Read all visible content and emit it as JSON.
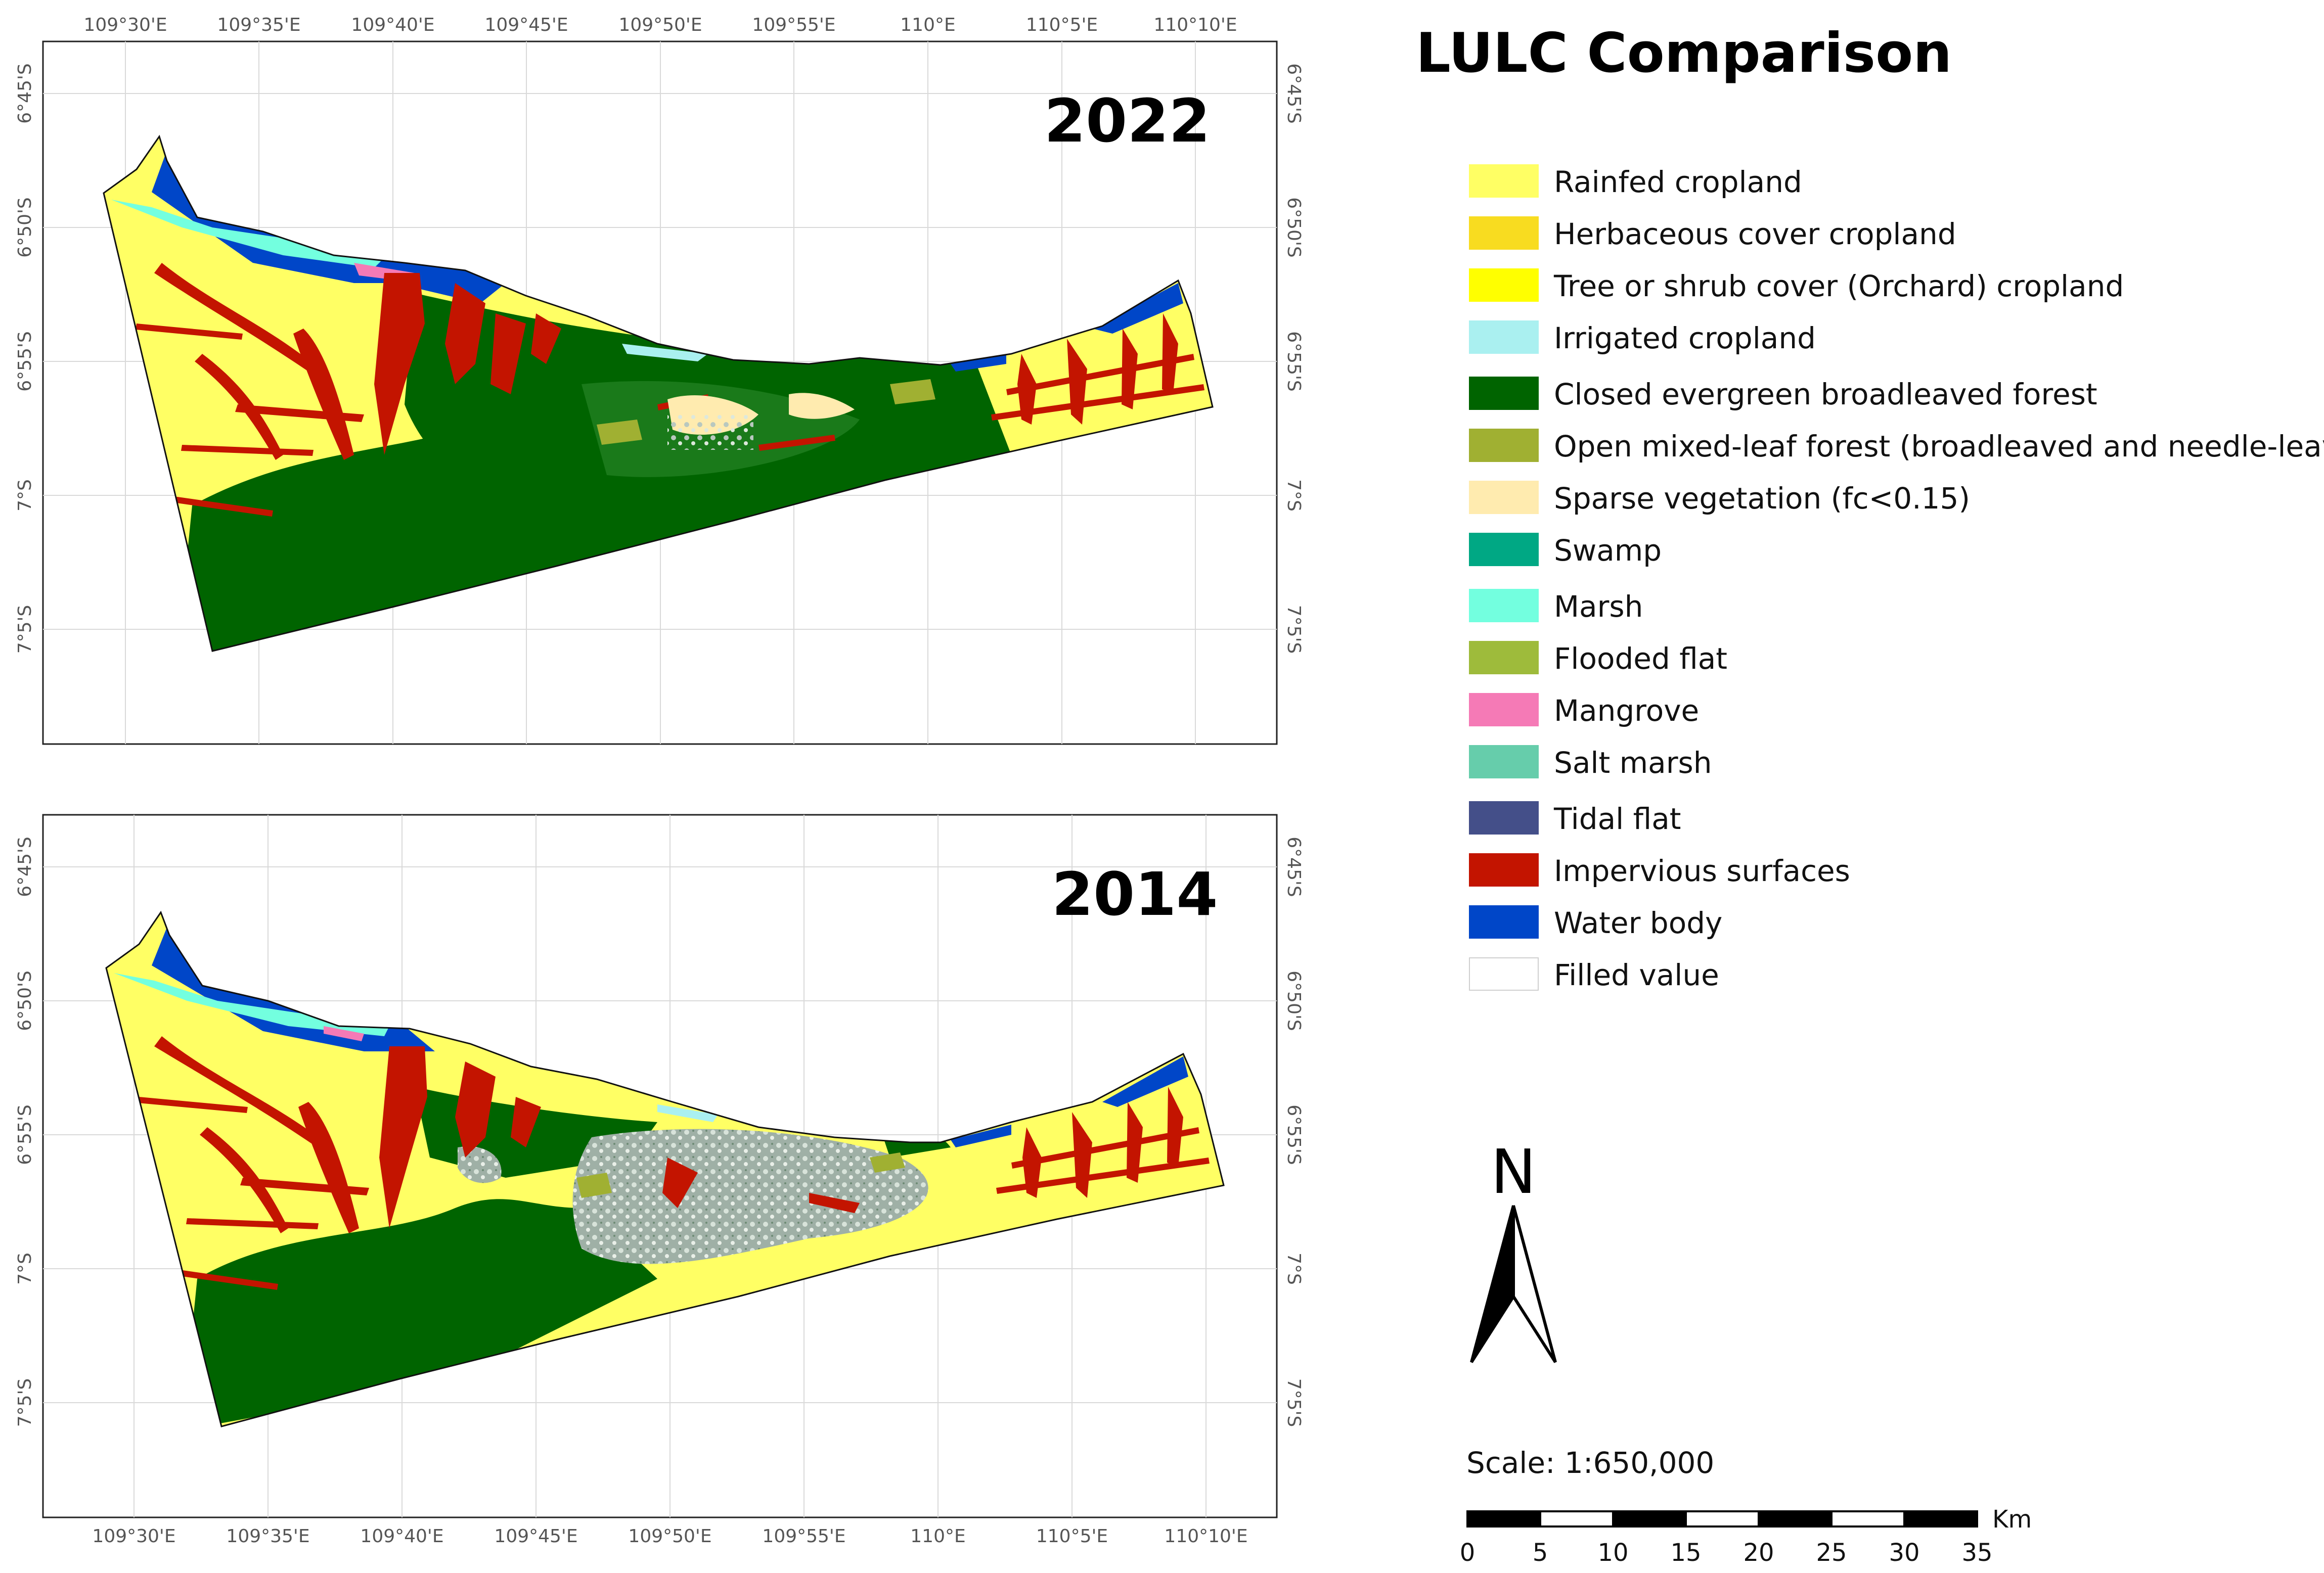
{
  "legend": {
    "title": "LULC Comparison",
    "items": [
      {
        "label": "Rainfed cropland",
        "color": "#ffff64"
      },
      {
        "label": "Herbaceous cover cropland",
        "color": "#f8dc20"
      },
      {
        "label": "Tree or shrub cover (Orchard) cropland",
        "color": "#ffff00"
      },
      {
        "label": "Irrigated cropland",
        "color": "#aaf0f0"
      },
      {
        "label": "Closed evergreen broadleaved forest",
        "color": "#006400"
      },
      {
        "label": "Open mixed-leaf forest (broadleaved and needle-leaved)",
        "color": "#a0b032"
      },
      {
        "label": "Sparse vegetation (fc<0.15)",
        "color": "#ffebaf"
      },
      {
        "label": "Swamp",
        "color": "#00a884"
      },
      {
        "label": "Marsh",
        "color": "#73ffdf"
      },
      {
        "label": "Flooded flat",
        "color": "#9ebb3b"
      },
      {
        "label": "Mangrove",
        "color": "#f57ab6"
      },
      {
        "label": "Salt marsh",
        "color": "#66cdab"
      },
      {
        "label": "Tidal flat",
        "color": "#444f89"
      },
      {
        "label": "Impervious surfaces",
        "color": "#c31400"
      },
      {
        "label": "Water body",
        "color": "#0046c8"
      },
      {
        "label": "Filled value",
        "color": "#ffffff"
      }
    ]
  },
  "maps": [
    {
      "year": "2022",
      "lon_top": [
        "109°30'E",
        "109°35'E",
        "109°40'E",
        "109°45'E",
        "109°50'E",
        "109°55'E",
        "110°E",
        "110°5'E",
        "110°10'E"
      ],
      "lon_bottom": [],
      "lat_left": [
        "6°45'S",
        "6°50'S",
        "6°55'S",
        "7°S",
        "7°5'S"
      ],
      "lat_right": [
        "6°45'S",
        "6°50'S",
        "6°55'S",
        "7°S",
        "7°5'S"
      ]
    },
    {
      "year": "2014",
      "lon_top": [],
      "lon_bottom": [
        "109°30'E",
        "109°35'E",
        "109°40'E",
        "109°45'E",
        "109°50'E",
        "109°55'E",
        "110°E",
        "110°5'E",
        "110°10'E"
      ],
      "lat_left": [
        "6°45'S",
        "6°50'S",
        "6°55'S",
        "7°S",
        "7°5'S"
      ],
      "lat_right": [
        "6°45'S",
        "6°50'S",
        "6°55'S",
        "7°S",
        "7°5'S"
      ]
    }
  ],
  "north_arrow": {
    "label": "N"
  },
  "scale": {
    "text": "Scale: 1:650,000",
    "unit": "Km",
    "ticks": [
      "0",
      "5",
      "10",
      "15",
      "20",
      "25",
      "30",
      "35"
    ]
  }
}
